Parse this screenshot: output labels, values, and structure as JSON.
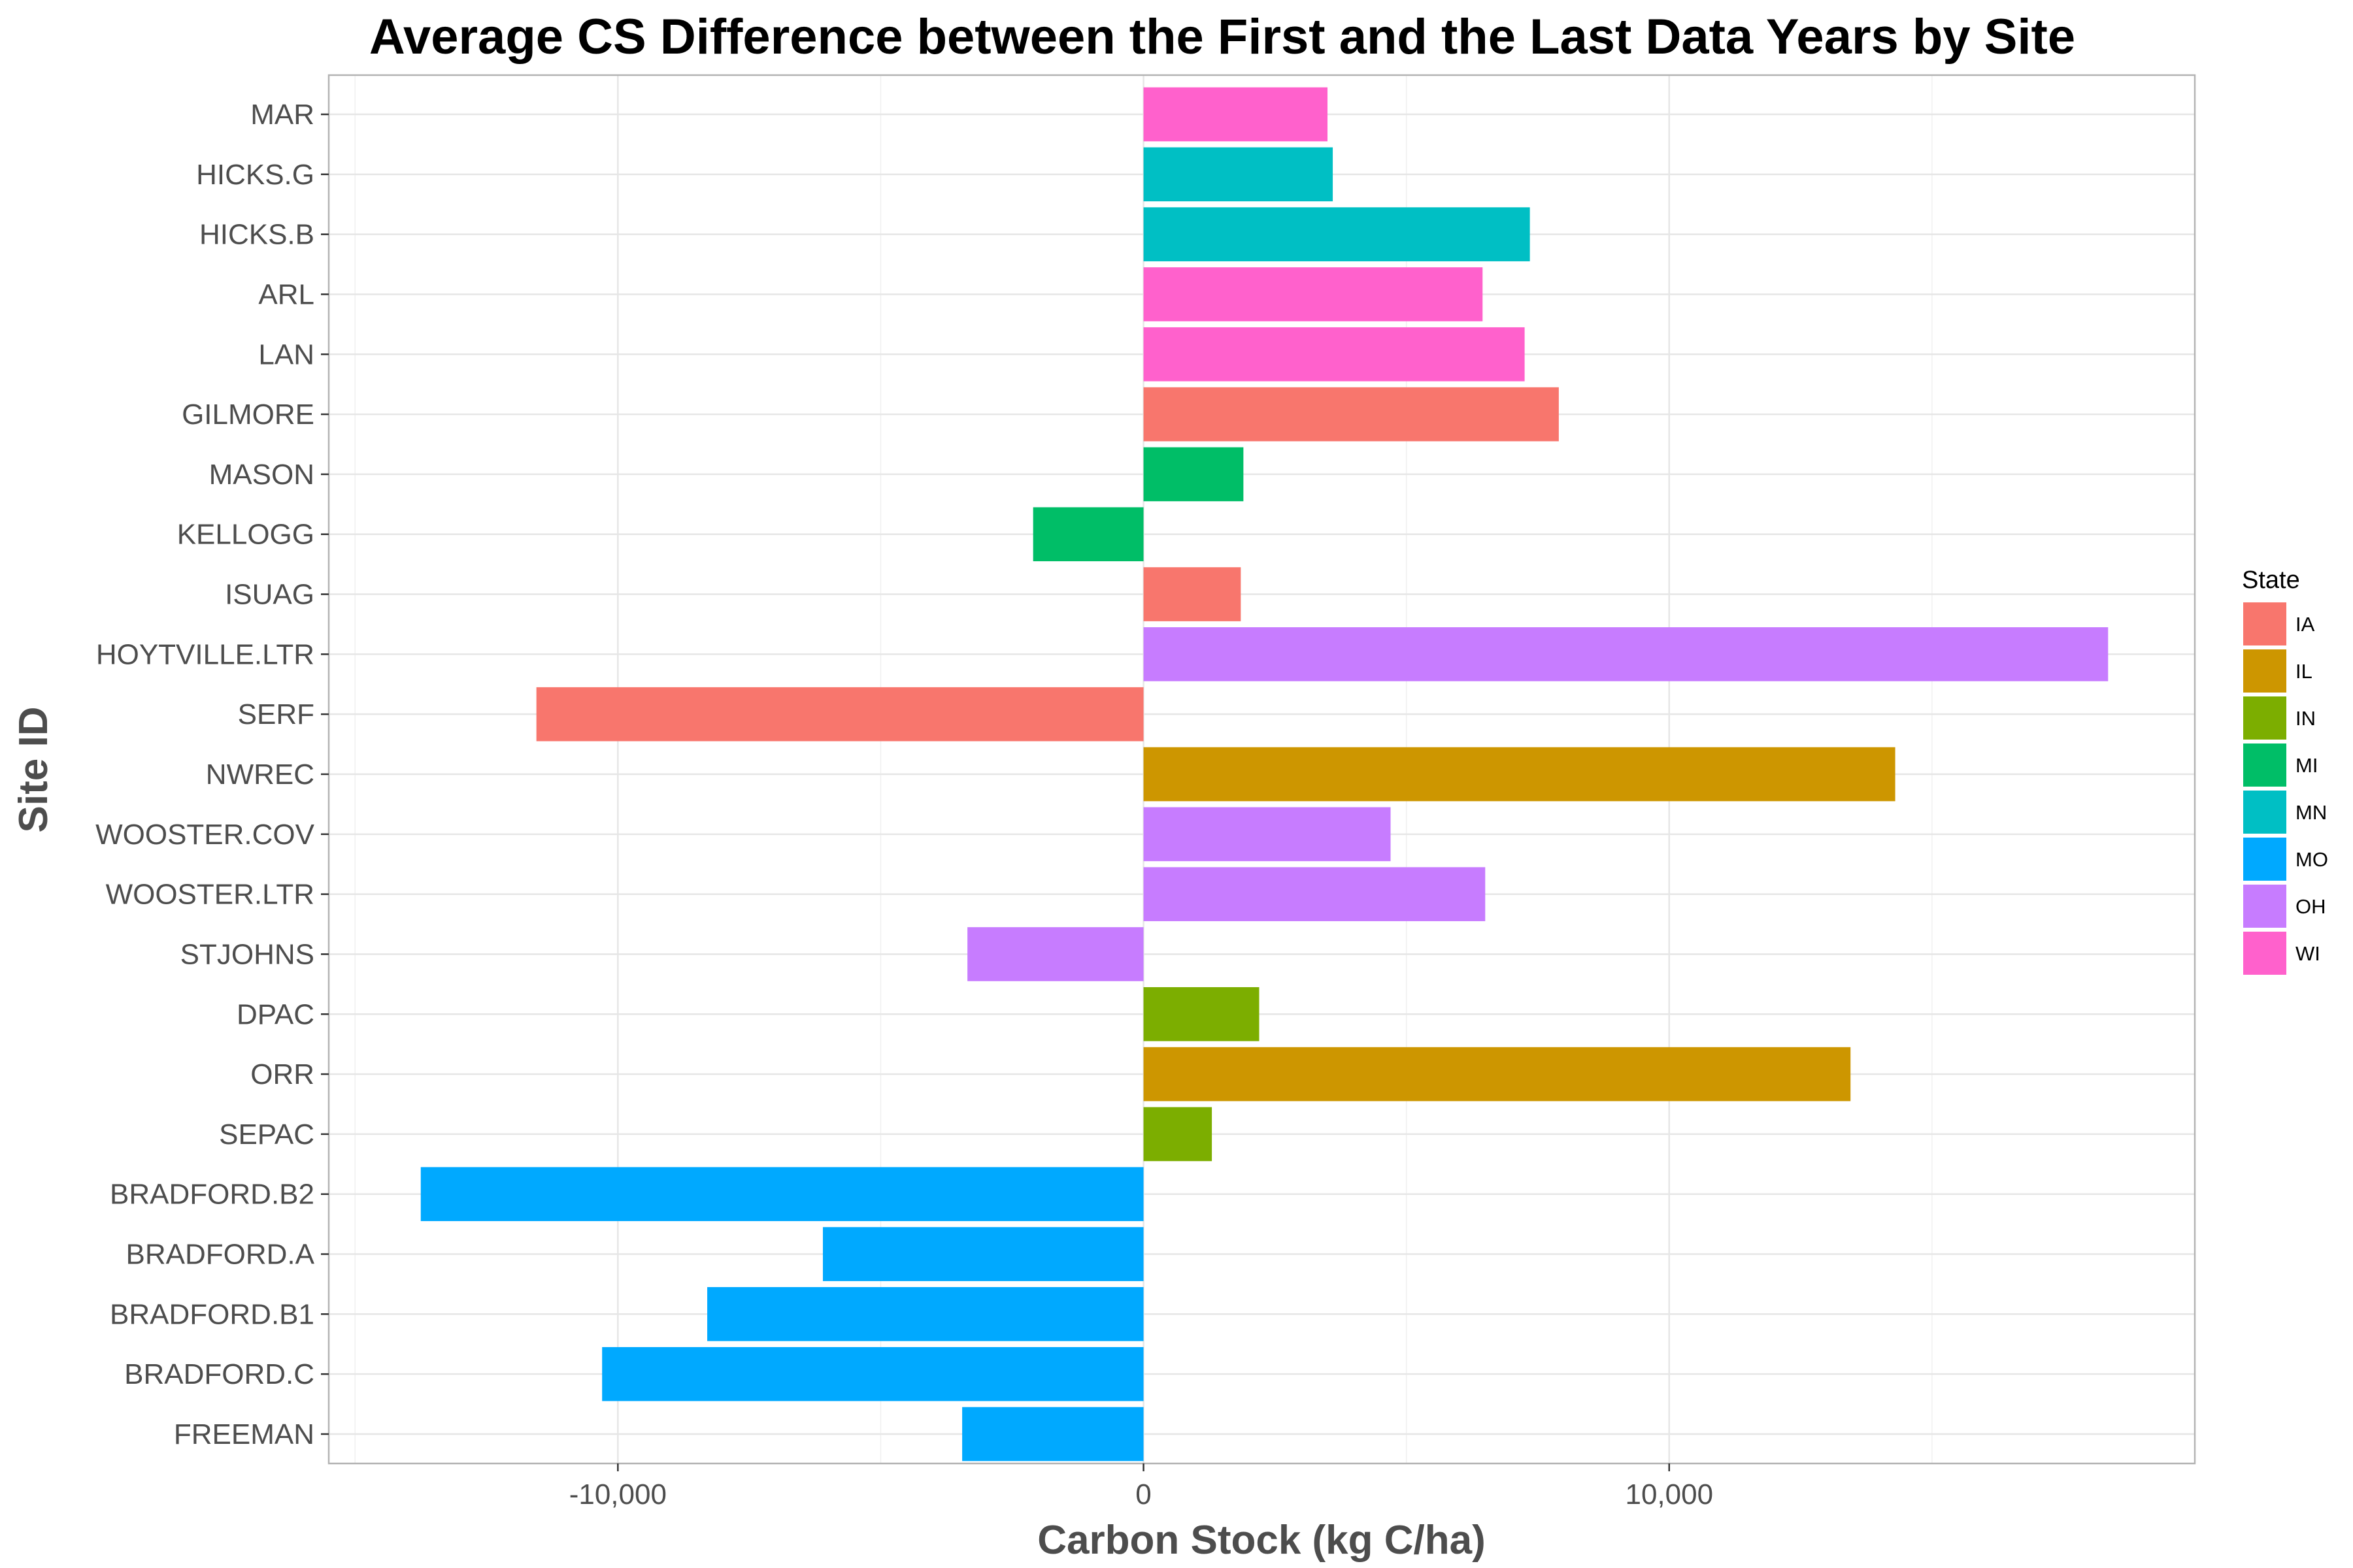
{
  "chart_data": {
    "type": "bar",
    "orientation": "horizontal",
    "title": "Average CS Difference between the First and the Last Data Years by Site",
    "xlabel": "Carbon Stock (kg C/ha)",
    "ylabel": "Site ID",
    "xlim": [
      -15500,
      20000
    ],
    "x_ticks": [
      -10000,
      0,
      10000
    ],
    "x_tick_labels": [
      "-10,000",
      "0",
      "10,000"
    ],
    "grid": true,
    "legend": {
      "title": "State",
      "position": "right",
      "entries": [
        {
          "label": "IA",
          "color": "#F8766D"
        },
        {
          "label": "IL",
          "color": "#CD9600"
        },
        {
          "label": "IN",
          "color": "#7CAE00"
        },
        {
          "label": "MI",
          "color": "#00BE67"
        },
        {
          "label": "MN",
          "color": "#00BFC4"
        },
        {
          "label": "MO",
          "color": "#00A9FF"
        },
        {
          "label": "OH",
          "color": "#C77CFF"
        },
        {
          "label": "WI",
          "color": "#FF61CC"
        }
      ]
    },
    "categories": [
      "MAR",
      "HICKS.G",
      "HICKS.B",
      "ARL",
      "LAN",
      "GILMORE",
      "MASON",
      "KELLOGG",
      "ISUAG",
      "HOYTVILLE.LTR",
      "SERF",
      "NWREC",
      "WOOSTER.COV",
      "WOOSTER.LTR",
      "STJOHNS",
      "DPAC",
      "ORR",
      "SEPAC",
      "BRADFORD.B2",
      "BRADFORD.A",
      "BRADFORD.B1",
      "BRADFORD.C",
      "FREEMAN"
    ],
    "states": [
      "WI",
      "MN",
      "MN",
      "WI",
      "WI",
      "IA",
      "MI",
      "MI",
      "IA",
      "OH",
      "IA",
      "IL",
      "OH",
      "OH",
      "OH",
      "IN",
      "IL",
      "IN",
      "MO",
      "MO",
      "MO",
      "MO",
      "MO"
    ],
    "values": [
      3500,
      3600,
      7350,
      6450,
      7250,
      7900,
      1900,
      -2100,
      1850,
      18350,
      -11550,
      14300,
      4700,
      6500,
      -3350,
      2200,
      13450,
      1300,
      -13750,
      -6100,
      -8300,
      -10300,
      -3450
    ]
  }
}
